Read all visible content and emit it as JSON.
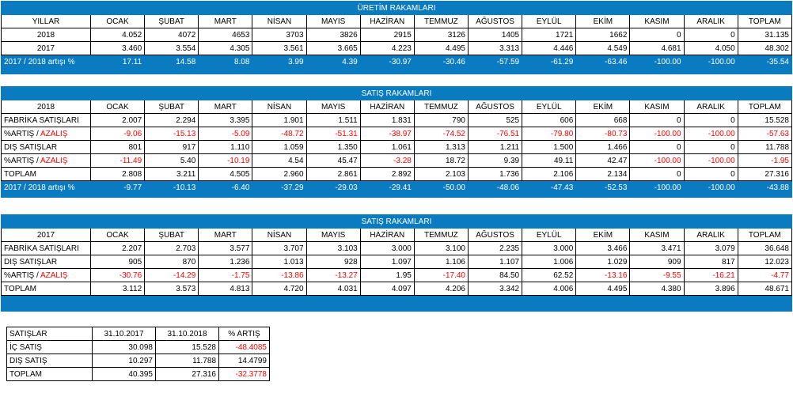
{
  "months": [
    "OCAK",
    "ŞUBAT",
    "MART",
    "NİSAN",
    "MAYIS",
    "HAZİRAN",
    "TEMMUZ",
    "AĞUSTOS",
    "EYLÜL",
    "EKİM",
    "KASIM",
    "ARALIK",
    "TOPLAM"
  ],
  "t1": {
    "title": "ÜRETİM RAKAMLARI",
    "corner": "YILLAR",
    "rows": [
      {
        "label": "2018",
        "values": [
          "4.052",
          "4072",
          "4653",
          "3703",
          "3826",
          "2915",
          "3126",
          "1405",
          "1721",
          "1662",
          "0",
          "0",
          "31.135"
        ]
      },
      {
        "label": "2017",
        "values": [
          "3.460",
          "3.554",
          "4.305",
          "3.561",
          "3.665",
          "4.223",
          "4.495",
          "3.313",
          "4.446",
          "4.549",
          "4.681",
          "4.050",
          "48.302"
        ]
      }
    ],
    "footer": {
      "label": "2017 / 2018 artışı %",
      "values": [
        "17.11",
        "14.58",
        "8.08",
        "3.99",
        "4.39",
        "-30.97",
        "-30.46",
        "-57.59",
        "-61.29",
        "-63.46",
        "-100.00",
        "-100.00",
        "-35.54"
      ]
    }
  },
  "t2": {
    "title": "SATIŞ RAKAMLARI",
    "corner": "2018",
    "rows": [
      {
        "label": "FABRİKA SATIŞLARI",
        "values": [
          "2.007",
          "2.294",
          "3.395",
          "1.901",
          "1.511",
          "1.831",
          "790",
          "525",
          "606",
          "668",
          "0",
          "0",
          "15.528"
        ]
      },
      {
        "label_a": "%ARTIŞ / ",
        "label_b": "AZALIŞ",
        "values": [
          "-9.06",
          "-15.13",
          "-5.09",
          "-48.72",
          "-51.31",
          "-38.97",
          "-74.52",
          "-76.51",
          "-79.80",
          "-80.73",
          "-100.00",
          "-100.00",
          "-57.63"
        ]
      },
      {
        "label": "DIŞ SATIŞLAR",
        "values": [
          "801",
          "917",
          "1.110",
          "1.059",
          "1.350",
          "1.061",
          "1.313",
          "1.211",
          "1.500",
          "1.466",
          "0",
          "0",
          "11.788"
        ]
      },
      {
        "label_a": "%ARTIŞ / ",
        "label_b": "AZALIŞ",
        "values": [
          "-11.49",
          "5.40",
          "-10.19",
          "4.54",
          "45.47",
          "-3.28",
          "18.72",
          "9.39",
          "49.11",
          "42.47",
          "-100.00",
          "-100.00",
          "-1.95"
        ]
      },
      {
        "label": "TOPLAM",
        "values": [
          "2.808",
          "3.211",
          "4.505",
          "2.960",
          "2.861",
          "2.892",
          "2.103",
          "1.736",
          "2.106",
          "2.134",
          "0",
          "0",
          "27.316"
        ]
      }
    ],
    "footer": {
      "label": "2017 / 2018 artışı %",
      "values": [
        "-9.77",
        "-10.13",
        "-6.40",
        "-37.29",
        "-29.03",
        "-29.41",
        "-50.00",
        "-48.06",
        "-47.43",
        "-52.53",
        "-100.00",
        "-100.00",
        "-43.88"
      ]
    }
  },
  "t3": {
    "title": "SATIŞ RAKAMLARI",
    "corner": "2017",
    "rows": [
      {
        "label": "FABRİKA SATIŞLARI",
        "values": [
          "2.207",
          "2.703",
          "3.577",
          "3.707",
          "3.103",
          "3.000",
          "3.100",
          "2.235",
          "3.000",
          "3.466",
          "3.471",
          "3.079",
          "36.648"
        ]
      },
      {
        "label": "DIŞ SATIŞLAR",
        "values": [
          "905",
          "870",
          "1.236",
          "1.013",
          "928",
          "1.097",
          "1.106",
          "1.107",
          "1.006",
          "1.029",
          "909",
          "817",
          "12.023"
        ]
      },
      {
        "label_a": "%ARTIŞ / ",
        "label_b": "AZALIŞ",
        "values": [
          "-30.76",
          "-14.29",
          "-1.75",
          "-13.86",
          "-13.27",
          "1.95",
          "-17.40",
          "84.50",
          "62.52",
          "-13.16",
          "-9.55",
          "-16.21",
          "-4.77"
        ]
      },
      {
        "label": "TOPLAM",
        "values": [
          "3.112",
          "3.573",
          "4.813",
          "4.720",
          "4.031",
          "4.097",
          "4.206",
          "3.342",
          "4.006",
          "4.495",
          "4.380",
          "3.896",
          "48.671"
        ]
      }
    ]
  },
  "t4": {
    "headers": [
      "SATIŞLAR",
      "31.10.2017",
      "31.10.2018",
      "% ARTIŞ"
    ],
    "rows": [
      {
        "label": "İÇ SATIŞ",
        "a": "30.098",
        "b": "15.528",
        "c": "-48.4085"
      },
      {
        "label": "DIŞ SATIŞ",
        "a": "10.297",
        "b": "11.788",
        "c": "14.4799"
      },
      {
        "label": "TOPLAM",
        "a": "40.395",
        "b": "27.316",
        "c": "-32.3778"
      }
    ]
  }
}
